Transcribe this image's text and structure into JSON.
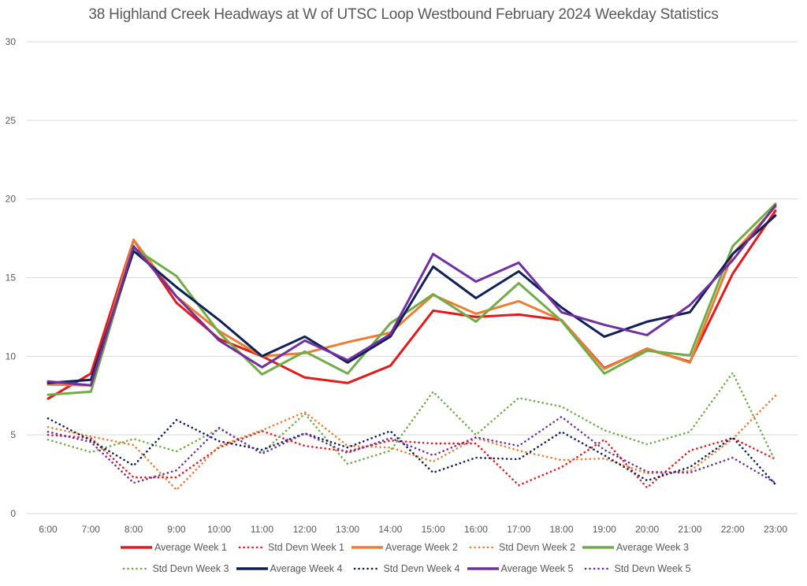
{
  "chart_data": {
    "type": "line",
    "title": "38 Highland Creek Headways at W of UTSC Loop Westbound February 2024 Weekday Statistics",
    "xlabel": "",
    "ylabel": "",
    "ylim": [
      0,
      30
    ],
    "yticks": [
      0,
      5,
      10,
      15,
      20,
      25,
      30
    ],
    "grid": true,
    "legend_position": "bottom",
    "categories": [
      "6:00",
      "7:00",
      "8:00",
      "9:00",
      "10:00",
      "11:00",
      "12:00",
      "13:00",
      "14:00",
      "15:00",
      "16:00",
      "17:00",
      "18:00",
      "19:00",
      "20:00",
      "21:00",
      "22:00",
      "23:00"
    ],
    "series": [
      {
        "name": "Average Week 1",
        "style": "solid",
        "color": "#e31a1c",
        "values": [
          7.3,
          8.9,
          17.4,
          13.4,
          11.1,
          10.0,
          8.65,
          8.3,
          9.4,
          12.9,
          12.5,
          12.65,
          12.3,
          9.25,
          10.45,
          9.65,
          15.25,
          19.25
        ]
      },
      {
        "name": "Std Devn Week 1",
        "style": "dotted",
        "color": "#e31a1c",
        "values": [
          5.0,
          4.8,
          2.3,
          2.3,
          4.2,
          5.25,
          4.3,
          3.95,
          4.65,
          4.45,
          4.45,
          1.8,
          2.95,
          4.7,
          1.65,
          4.0,
          4.8,
          3.45
        ]
      },
      {
        "name": "Average Week 2",
        "style": "solid",
        "color": "#ed7d31",
        "values": [
          8.2,
          8.15,
          17.4,
          13.8,
          11.6,
          10.0,
          10.2,
          10.9,
          11.5,
          13.9,
          12.7,
          13.5,
          12.3,
          9.2,
          10.5,
          9.6,
          16.5,
          19.5
        ]
      },
      {
        "name": "Std Devn Week 2",
        "style": "dotted",
        "color": "#ed7d31",
        "values": [
          5.5,
          4.9,
          4.35,
          1.5,
          4.3,
          5.3,
          6.45,
          4.3,
          4.2,
          3.3,
          4.8,
          4.0,
          3.4,
          3.5,
          2.55,
          2.7,
          4.75,
          7.5
        ]
      },
      {
        "name": "Average Week 3",
        "style": "solid",
        "color": "#70ad47",
        "values": [
          7.55,
          7.75,
          16.9,
          15.1,
          11.5,
          8.85,
          10.3,
          8.9,
          12.1,
          13.95,
          12.2,
          14.65,
          12.25,
          8.9,
          10.35,
          10.05,
          17.0,
          19.7
        ]
      },
      {
        "name": "Std Devn Week 3",
        "style": "dotted",
        "color": "#70ad47",
        "values": [
          4.7,
          3.9,
          4.75,
          3.95,
          5.4,
          3.85,
          6.35,
          3.15,
          4.0,
          7.75,
          5.0,
          7.35,
          6.8,
          5.3,
          4.4,
          5.2,
          8.95,
          3.3
        ]
      },
      {
        "name": "Average Week 4",
        "style": "solid",
        "color": "#0f2057",
        "values": [
          8.3,
          8.5,
          16.7,
          14.4,
          12.3,
          10.0,
          11.25,
          9.6,
          11.25,
          15.7,
          13.7,
          15.4,
          13.1,
          11.25,
          12.2,
          12.8,
          16.5,
          18.95
        ]
      },
      {
        "name": "Std Devn Week 4",
        "style": "dotted",
        "color": "#0f2057",
        "values": [
          6.05,
          4.65,
          3.05,
          5.95,
          4.6,
          4.05,
          5.1,
          4.2,
          5.25,
          2.6,
          3.55,
          3.45,
          5.2,
          3.7,
          2.1,
          2.95,
          4.85,
          1.85
        ]
      },
      {
        "name": "Average Week 5",
        "style": "solid",
        "color": "#7030a0",
        "values": [
          8.4,
          8.15,
          17.0,
          13.8,
          11.0,
          9.3,
          11.0,
          9.75,
          11.4,
          16.5,
          14.75,
          15.95,
          12.8,
          12.0,
          11.35,
          13.25,
          16.1,
          19.6
        ]
      },
      {
        "name": "Std Devn Week 5",
        "style": "dotted",
        "color": "#7030a0",
        "values": [
          5.2,
          4.55,
          1.95,
          2.75,
          5.45,
          3.8,
          5.1,
          3.85,
          4.8,
          3.7,
          4.85,
          4.3,
          6.15,
          4.05,
          2.65,
          2.6,
          3.55,
          1.95
        ]
      }
    ]
  },
  "legend_rows": [
    [
      0,
      1,
      2,
      3,
      4
    ],
    [
      5,
      6,
      7,
      8,
      9
    ]
  ]
}
